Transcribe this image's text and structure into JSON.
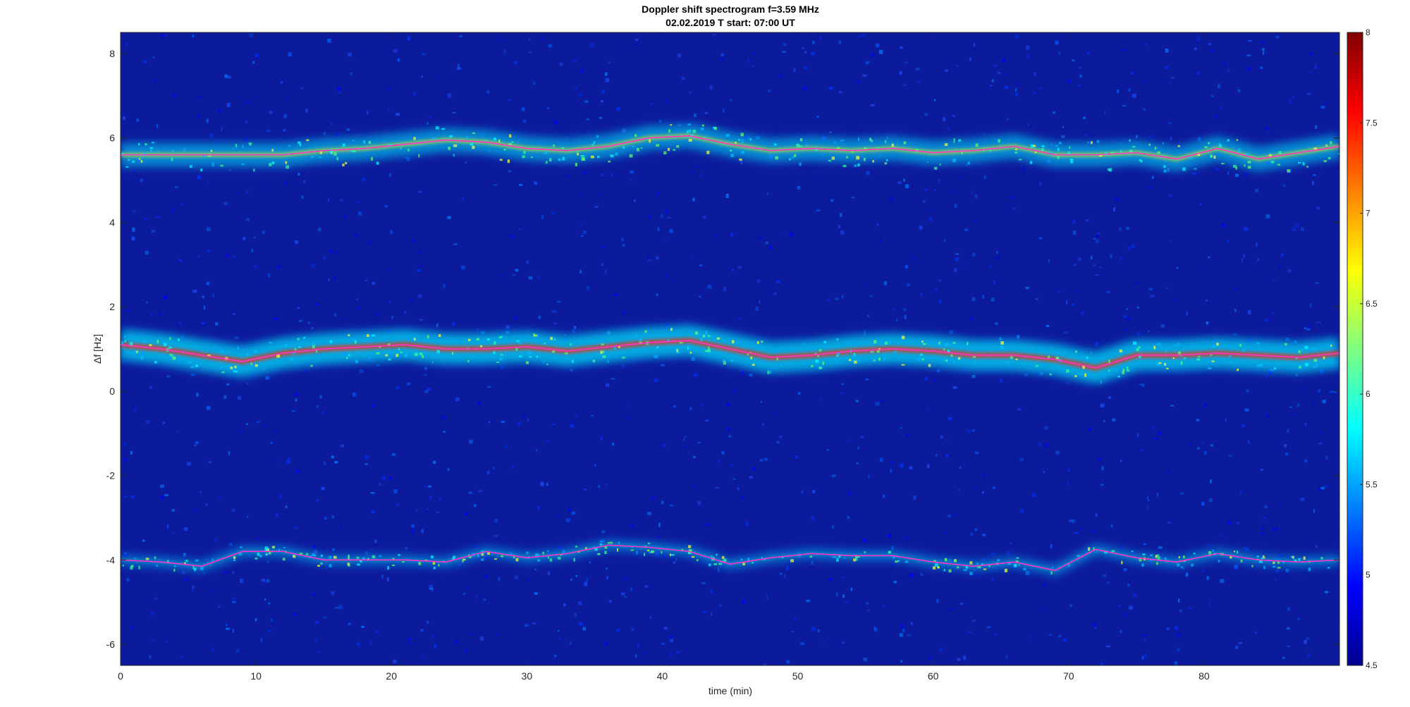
{
  "chart_data": {
    "type": "heatmap",
    "title": "Doppler shift spectrogram f=3.59 MHz",
    "subtitle": "02.02.2019   T start: 07:00 UT",
    "xlabel": "time (min)",
    "ylabel": "Δf [Hz]",
    "xlim": [
      0,
      90
    ],
    "ylim": [
      -6.5,
      8.5
    ],
    "x_ticks": [
      0,
      10,
      20,
      30,
      40,
      50,
      60,
      70,
      80
    ],
    "y_ticks": [
      -6,
      -4,
      -2,
      0,
      2,
      4,
      6,
      8
    ],
    "grid": false,
    "colormap": "jet",
    "colorbar": {
      "range": [
        4.5,
        8
      ],
      "ticks": [
        4.5,
        5,
        5.5,
        6,
        6.5,
        7,
        7.5,
        8
      ],
      "position": "right"
    },
    "series": [
      {
        "x": [
          0,
          3,
          6,
          9,
          12,
          15,
          18,
          21,
          24,
          27,
          30,
          33,
          36,
          39,
          42,
          45,
          48,
          51,
          54,
          57,
          60,
          63,
          66,
          69,
          72,
          75,
          78,
          81,
          84,
          87,
          90
        ],
        "y": [
          5.6,
          5.6,
          5.6,
          5.6,
          5.6,
          5.7,
          5.75,
          5.85,
          5.95,
          5.9,
          5.75,
          5.7,
          5.8,
          6.0,
          6.05,
          5.85,
          5.7,
          5.75,
          5.7,
          5.75,
          5.65,
          5.7,
          5.8,
          5.6,
          5.6,
          5.65,
          5.5,
          5.75,
          5.5,
          5.65,
          5.8
        ]
      },
      {
        "x": [
          0,
          3,
          6,
          9,
          12,
          15,
          18,
          21,
          24,
          27,
          30,
          33,
          36,
          39,
          42,
          45,
          48,
          51,
          54,
          57,
          60,
          63,
          66,
          69,
          72,
          75,
          78,
          81,
          84,
          87,
          90
        ],
        "y": [
          1.1,
          1.0,
          0.85,
          0.7,
          0.9,
          1.0,
          1.05,
          1.1,
          1.0,
          1.0,
          1.05,
          0.95,
          1.05,
          1.15,
          1.2,
          1.0,
          0.8,
          0.85,
          0.95,
          1.0,
          0.95,
          0.85,
          0.85,
          0.75,
          0.55,
          0.85,
          0.85,
          0.9,
          0.85,
          0.8,
          0.9
        ]
      },
      {
        "x": [
          0,
          3,
          6,
          9,
          12,
          15,
          18,
          21,
          24,
          27,
          30,
          33,
          36,
          39,
          42,
          45,
          48,
          51,
          54,
          57,
          60,
          63,
          66,
          69,
          72,
          75,
          78,
          81,
          84,
          87,
          90
        ],
        "y": [
          -4.0,
          -4.05,
          -4.15,
          -3.8,
          -3.8,
          -4.0,
          -4.0,
          -4.0,
          -4.05,
          -3.8,
          -3.95,
          -3.85,
          -3.65,
          -3.7,
          -3.8,
          -4.1,
          -3.95,
          -3.85,
          -3.9,
          -3.9,
          -4.05,
          -4.15,
          -4.05,
          -4.25,
          -3.75,
          -3.95,
          -4.05,
          -3.85,
          -4.0,
          -4.05,
          -4.0
        ]
      }
    ]
  }
}
